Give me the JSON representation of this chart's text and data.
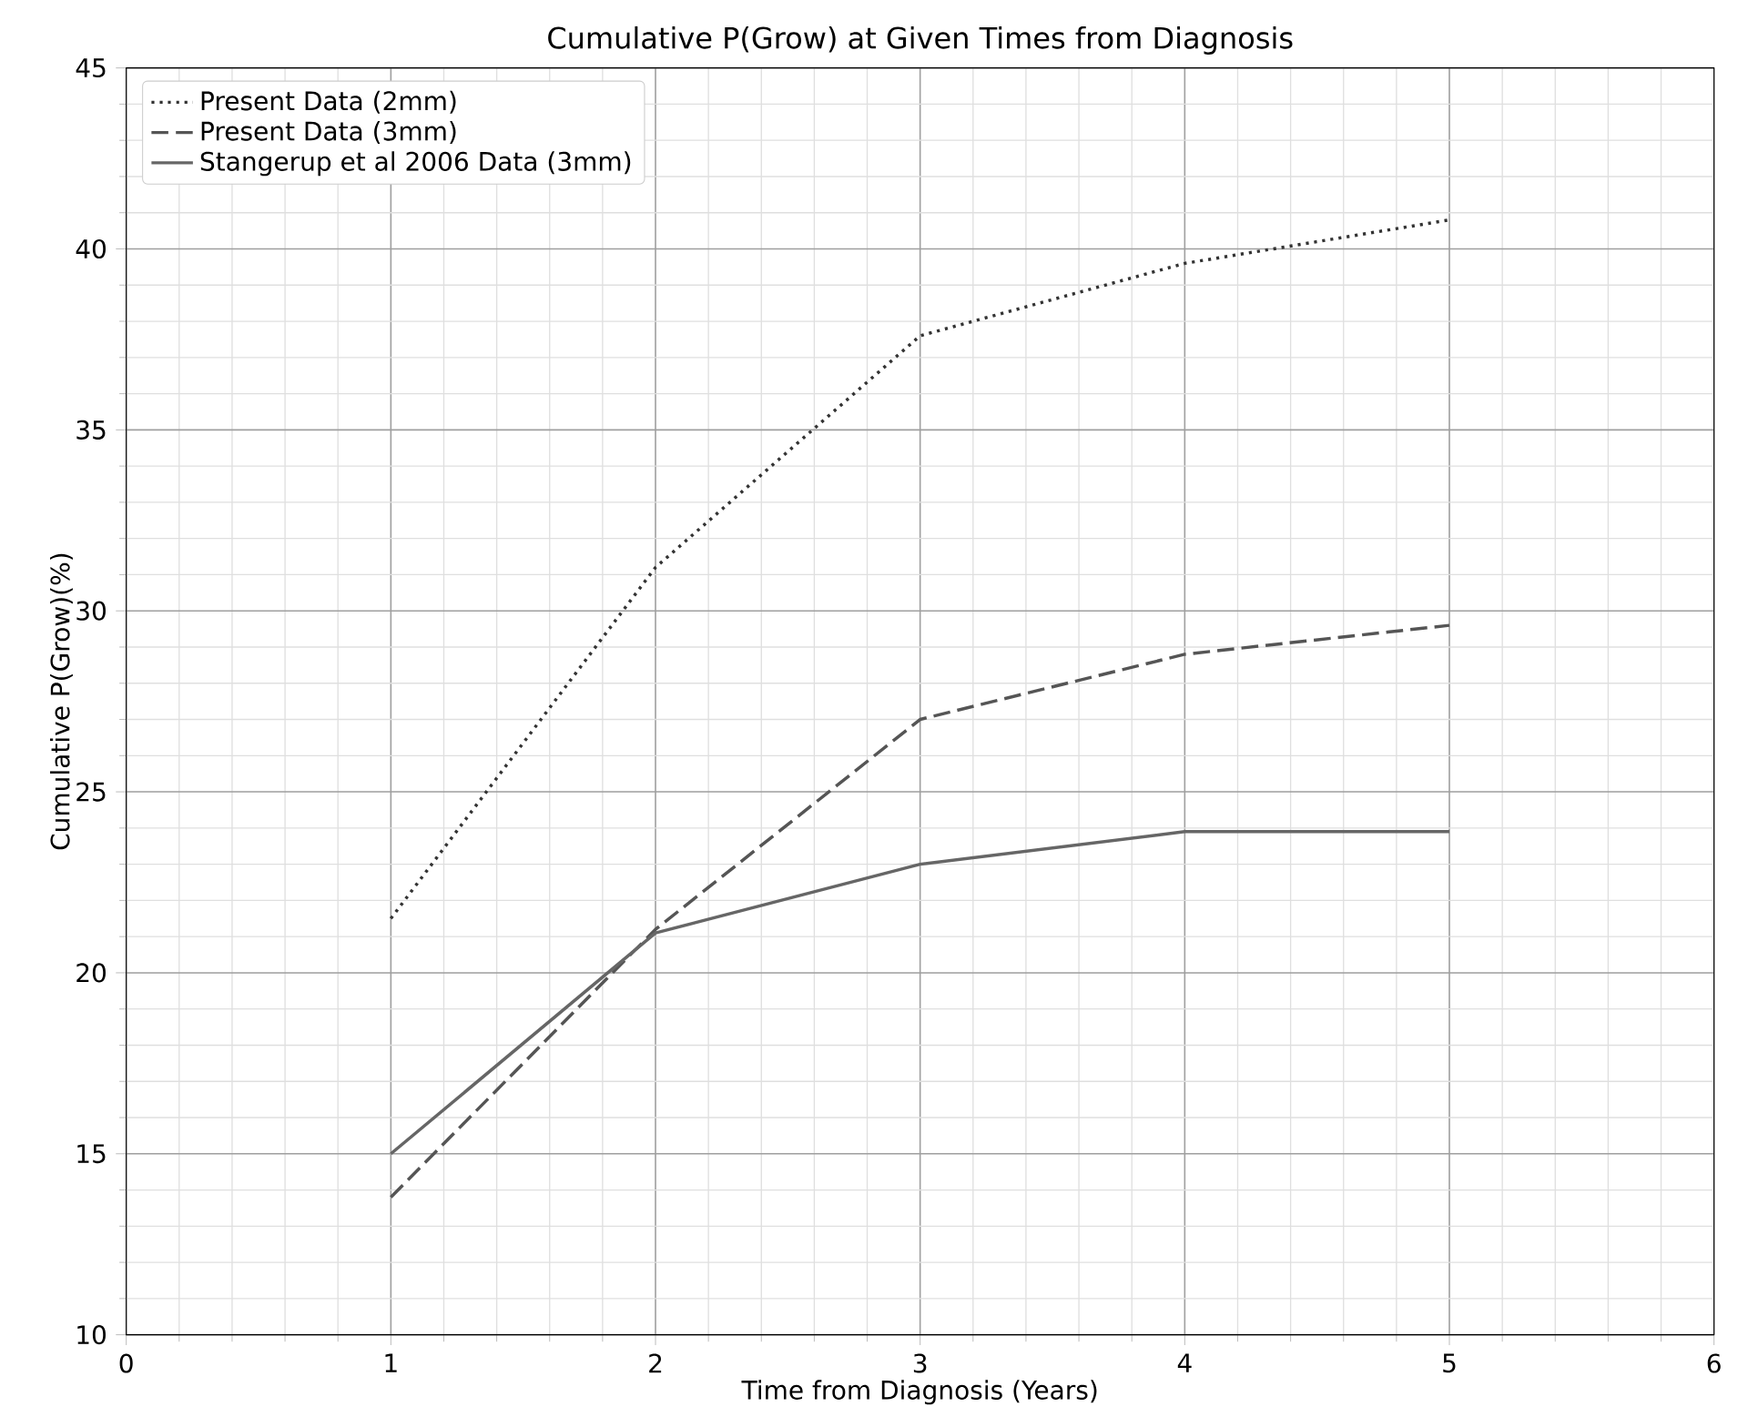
{
  "chart_data": {
    "type": "line",
    "title": "Cumulative P(Grow) at Given Times from Diagnosis",
    "xlabel": "Time from Diagnosis (Years)",
    "ylabel": "Cumulative P(Grow)(%)",
    "x": [
      1,
      2,
      3,
      4,
      5
    ],
    "series": [
      {
        "name": "Present Data (2mm)",
        "color": "#333333",
        "line_style": "dotted",
        "values": [
          21.5,
          31.2,
          37.6,
          39.6,
          40.8
        ]
      },
      {
        "name": "Present Data (3mm)",
        "color": "#555555",
        "line_style": "dashed",
        "values": [
          13.8,
          21.2,
          27.0,
          28.8,
          29.6
        ]
      },
      {
        "name": "Stangerup et al 2006 Data (3mm)",
        "color": "#666666",
        "line_style": "solid",
        "values": [
          15.0,
          21.1,
          23.0,
          23.9,
          23.9
        ]
      }
    ],
    "xlim": [
      0,
      6
    ],
    "ylim": [
      10,
      45
    ],
    "xticks": [
      0,
      1,
      2,
      3,
      4,
      5,
      6
    ],
    "yticks": [
      10,
      15,
      20,
      25,
      30,
      35,
      40,
      45
    ],
    "grid": true,
    "legend": "top left",
    "marker": "none"
  }
}
